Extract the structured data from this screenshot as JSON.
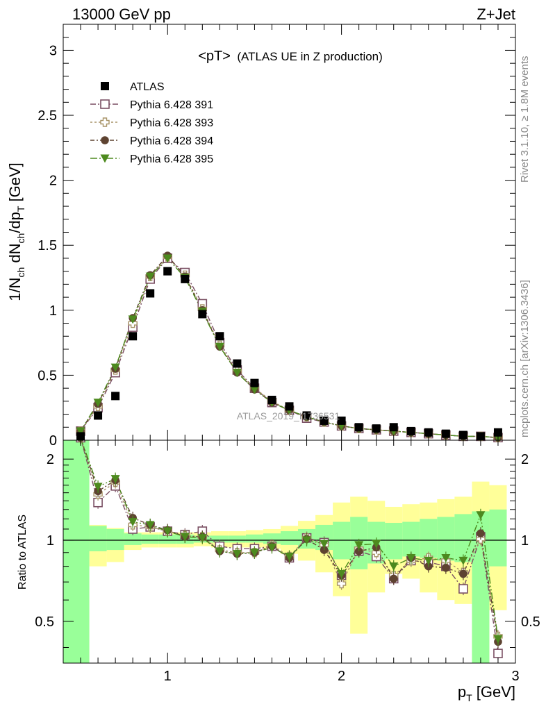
{
  "header": {
    "left": "13000 GeV pp",
    "right": "Z+Jet"
  },
  "main_panel": {
    "title_main": "<pT>",
    "title_sub": "(ATLAS UE in Z production)",
    "ylabel": "1/N_ch dN_ch/dp_T [GeV]",
    "watermark": "ATLAS_2019_I1736531"
  },
  "ratio_panel": {
    "ylabel": "Ratio to ATLAS"
  },
  "side_text": {
    "top": "Rivet 3.1.10, ≥ 1.8M events",
    "bottom": "mcplots.cern.ch [arXiv:1306.3436]"
  },
  "colors": {
    "atlas": "#000000",
    "p391": "#7a4f63",
    "p393": "#a89468",
    "p394": "#5e4331",
    "p395": "#4d8a1e",
    "band_inner": "#99ff99",
    "band_outer": "#ffff99"
  },
  "chart_data": [
    {
      "type": "scatter",
      "xlabel": "p_T [GeV]",
      "ylabel": "1/N_ch dN_ch/dp_T [GeV]",
      "xlim": [
        0.4,
        3.0
      ],
      "ylim": [
        0,
        3.2
      ],
      "x_ticks": [
        1,
        2,
        3
      ],
      "y_ticks": [
        0,
        0.5,
        1,
        1.5,
        2,
        2.5,
        3
      ],
      "x": [
        0.5,
        0.6,
        0.7,
        0.8,
        0.9,
        1.0,
        1.1,
        1.2,
        1.3,
        1.4,
        1.5,
        1.6,
        1.7,
        1.8,
        1.9,
        2.0,
        2.1,
        2.2,
        2.3,
        2.4,
        2.5,
        2.6,
        2.7,
        2.8,
        2.9
      ],
      "legend_position": "top-left",
      "series": [
        {
          "name": "ATLAS",
          "marker": "square",
          "values": [
            0.03,
            0.19,
            0.34,
            0.8,
            1.13,
            1.3,
            1.24,
            0.97,
            0.8,
            0.59,
            0.44,
            0.31,
            0.26,
            0.19,
            0.15,
            0.15,
            0.1,
            0.09,
            0.1,
            0.07,
            0.06,
            0.05,
            0.04,
            0.03,
            0.06
          ]
        },
        {
          "name": "Pythia 6.428 391",
          "marker": "open-square",
          "values": [
            0.07,
            0.25,
            0.52,
            0.87,
            1.24,
            1.4,
            1.29,
            1.05,
            0.75,
            0.54,
            0.4,
            0.29,
            0.23,
            0.17,
            0.14,
            0.11,
            0.09,
            0.08,
            0.07,
            0.06,
            0.05,
            0.04,
            0.03,
            0.03,
            0.02
          ]
        },
        {
          "name": "Pythia 6.428 393",
          "marker": "open-cross",
          "values": [
            0.07,
            0.26,
            0.54,
            0.9,
            1.26,
            1.41,
            1.27,
            1.01,
            0.73,
            0.53,
            0.4,
            0.3,
            0.23,
            0.18,
            0.14,
            0.11,
            0.09,
            0.08,
            0.07,
            0.06,
            0.05,
            0.04,
            0.03,
            0.03,
            0.02
          ]
        },
        {
          "name": "Pythia 6.428 394",
          "marker": "circle",
          "values": [
            0.07,
            0.28,
            0.55,
            0.94,
            1.27,
            1.42,
            1.26,
            1.0,
            0.72,
            0.52,
            0.39,
            0.29,
            0.23,
            0.18,
            0.14,
            0.11,
            0.09,
            0.08,
            0.07,
            0.06,
            0.05,
            0.04,
            0.03,
            0.03,
            0.02
          ]
        },
        {
          "name": "Pythia 6.428 395",
          "marker": "triangle-down",
          "values": [
            0.07,
            0.29,
            0.56,
            0.93,
            1.26,
            1.4,
            1.25,
            0.99,
            0.72,
            0.52,
            0.39,
            0.29,
            0.23,
            0.18,
            0.14,
            0.11,
            0.09,
            0.08,
            0.07,
            0.06,
            0.05,
            0.04,
            0.03,
            0.03,
            0.02
          ]
        }
      ]
    },
    {
      "type": "scatter",
      "title": "",
      "xlabel": "p_T [GeV]",
      "ylabel": "Ratio to ATLAS",
      "xlim": [
        0.4,
        3.0
      ],
      "ylim": [
        0.35,
        2.35
      ],
      "x_ticks": [
        1,
        2,
        3
      ],
      "y_ticks": [
        0.5,
        1,
        2
      ],
      "bins": [
        0.4,
        0.55,
        0.65,
        0.75,
        0.85,
        0.95,
        1.05,
        1.15,
        1.25,
        1.35,
        1.45,
        1.55,
        1.65,
        1.75,
        1.85,
        1.95,
        2.05,
        2.15,
        2.25,
        2.35,
        2.45,
        2.55,
        2.65,
        2.75,
        2.85,
        2.95
      ],
      "band_inner": [
        [
          0.35,
          2.35
        ],
        [
          0.91,
          1.13
        ],
        [
          0.92,
          1.1
        ],
        [
          0.96,
          1.06
        ],
        [
          0.97,
          1.05
        ],
        [
          0.97,
          1.05
        ],
        [
          0.97,
          1.05
        ],
        [
          0.98,
          1.04
        ],
        [
          0.98,
          1.04
        ],
        [
          0.98,
          1.04
        ],
        [
          0.98,
          1.05
        ],
        [
          0.97,
          1.06
        ],
        [
          0.96,
          1.08
        ],
        [
          0.93,
          1.1
        ],
        [
          0.92,
          1.14
        ],
        [
          0.85,
          1.17
        ],
        [
          0.78,
          1.22
        ],
        [
          0.82,
          1.17
        ],
        [
          0.85,
          1.16
        ],
        [
          0.87,
          1.17
        ],
        [
          0.86,
          1.2
        ],
        [
          0.84,
          1.22
        ],
        [
          0.83,
          1.25
        ],
        [
          0.35,
          1.28
        ],
        [
          0.8,
          1.3
        ]
      ],
      "band_outer": [
        [
          0.35,
          2.35
        ],
        [
          0.8,
          1.14
        ],
        [
          0.83,
          1.11
        ],
        [
          0.92,
          1.07
        ],
        [
          0.94,
          1.07
        ],
        [
          0.94,
          1.07
        ],
        [
          0.94,
          1.07
        ],
        [
          0.95,
          1.07
        ],
        [
          0.94,
          1.08
        ],
        [
          0.94,
          1.08
        ],
        [
          0.94,
          1.09
        ],
        [
          0.93,
          1.1
        ],
        [
          0.89,
          1.13
        ],
        [
          0.84,
          1.18
        ],
        [
          0.76,
          1.24
        ],
        [
          0.62,
          1.38
        ],
        [
          0.45,
          1.45
        ],
        [
          0.64,
          1.4
        ],
        [
          0.75,
          1.33
        ],
        [
          0.72,
          1.36
        ],
        [
          0.64,
          1.38
        ],
        [
          0.6,
          1.42
        ],
        [
          0.58,
          1.45
        ],
        [
          0.35,
          1.65
        ],
        [
          0.55,
          1.6
        ]
      ],
      "x": [
        0.5,
        0.6,
        0.7,
        0.8,
        0.9,
        1.0,
        1.1,
        1.2,
        1.3,
        1.4,
        1.5,
        1.6,
        1.7,
        1.8,
        1.9,
        2.0,
        2.1,
        2.2,
        2.3,
        2.4,
        2.5,
        2.6,
        2.7,
        2.8,
        2.9
      ],
      "series": [
        {
          "name": "Pythia 6.428 391",
          "values": [
            2.4,
            1.38,
            1.59,
            1.1,
            1.12,
            1.08,
            1.05,
            1.08,
            0.95,
            0.93,
            0.93,
            0.95,
            0.86,
            1.02,
            0.98,
            0.74,
            0.91,
            0.87,
            0.72,
            0.84,
            0.83,
            0.8,
            0.66,
            1.03,
            0.38
          ]
        },
        {
          "name": "Pythia 6.428 393",
          "values": [
            2.4,
            1.48,
            1.64,
            1.14,
            1.12,
            1.08,
            1.04,
            1.03,
            0.92,
            0.9,
            0.9,
            0.96,
            0.87,
            1.02,
            0.96,
            0.69,
            0.93,
            0.9,
            0.74,
            0.84,
            0.86,
            0.84,
            0.76,
            1.01,
            0.44
          ]
        },
        {
          "name": "Pythia 6.428 394",
          "values": [
            2.4,
            1.52,
            1.67,
            1.21,
            1.14,
            1.09,
            1.03,
            1.03,
            0.91,
            0.89,
            0.9,
            0.95,
            0.86,
            1.01,
            0.92,
            0.74,
            0.91,
            0.94,
            0.72,
            0.86,
            0.8,
            0.79,
            0.75,
            1.06,
            0.42
          ]
        },
        {
          "name": "Pythia 6.428 395",
          "values": [
            2.4,
            1.58,
            1.69,
            1.17,
            1.14,
            1.08,
            1.03,
            1.02,
            0.91,
            0.89,
            0.9,
            0.94,
            0.87,
            1.0,
            0.97,
            0.75,
            0.96,
            0.97,
            0.8,
            0.86,
            0.84,
            0.86,
            0.84,
            1.24,
            0.43
          ]
        }
      ]
    }
  ]
}
